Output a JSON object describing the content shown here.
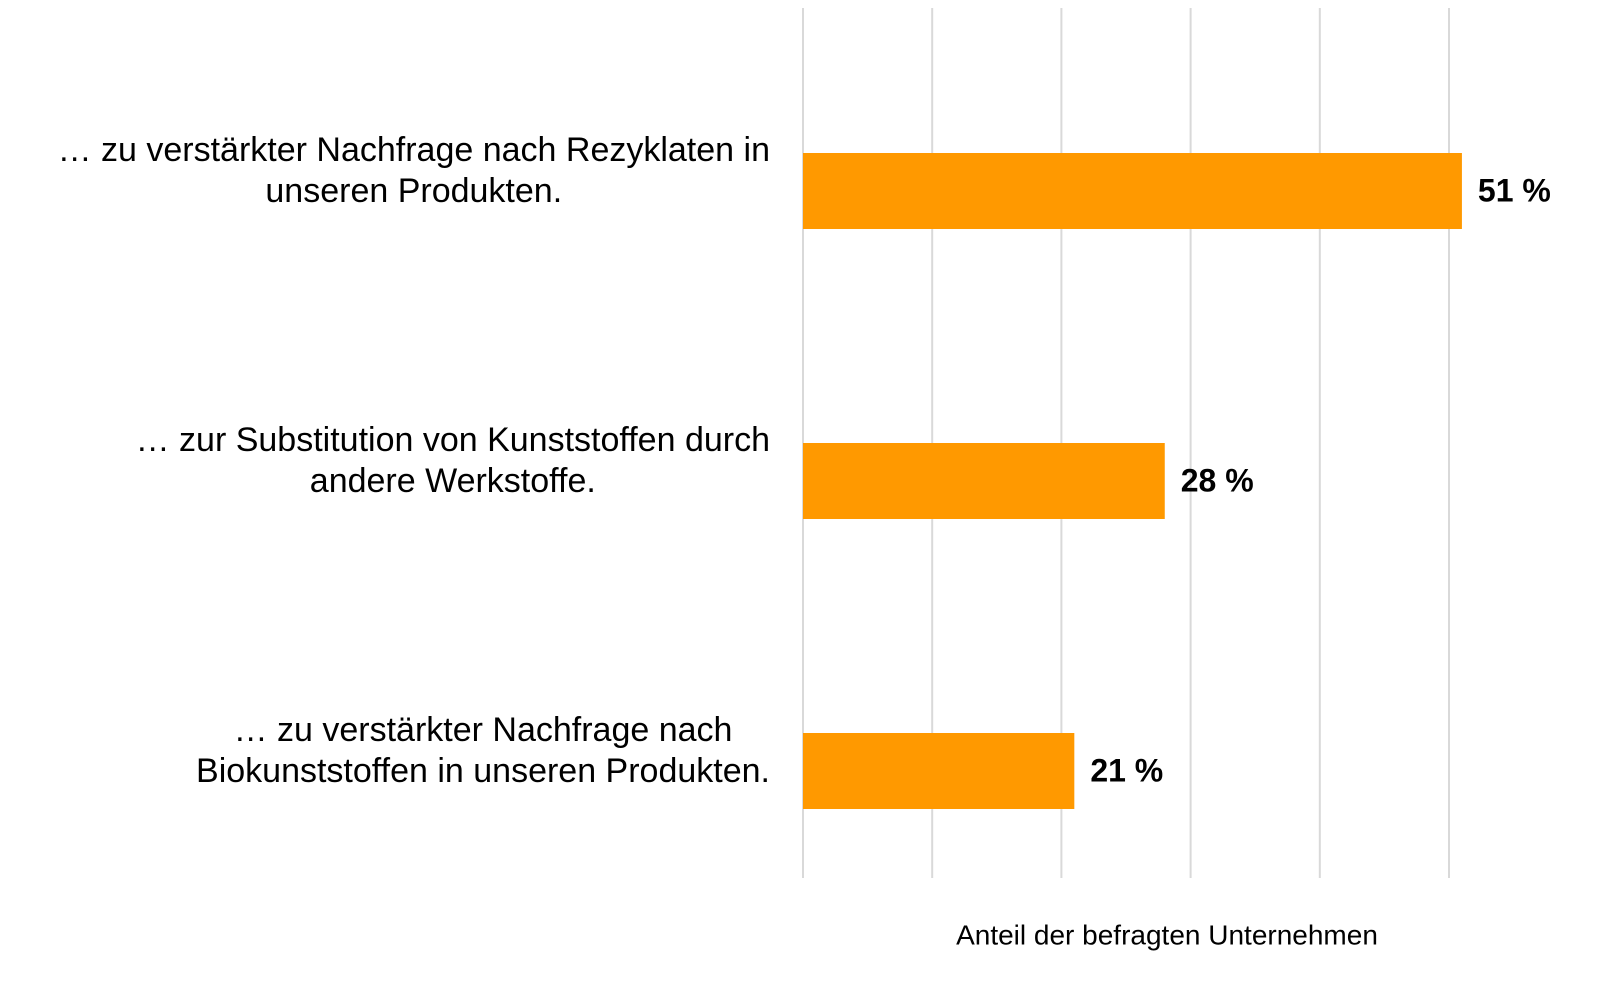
{
  "chart_data": {
    "type": "bar",
    "orientation": "horizontal",
    "categories": [
      "… zu verstärkter Nachfrage nach Rezyklaten in\nunseren Produkten.",
      "… zur Substitution von Kunststoffen durch\nandere Werkstoffe.",
      "… zu verstärkter Nachfrage nach\nBiokunststoffen in unseren Produkten."
    ],
    "values": [
      51,
      28,
      21
    ],
    "value_labels": [
      "51 %",
      "28 %",
      "21 %"
    ],
    "color": "#ff9900",
    "xlabel": "Anteil der befragten Unternehmen",
    "xlim": [
      0,
      50
    ],
    "xticks": [
      0,
      10,
      20,
      30,
      40,
      50
    ],
    "grid": true
  }
}
